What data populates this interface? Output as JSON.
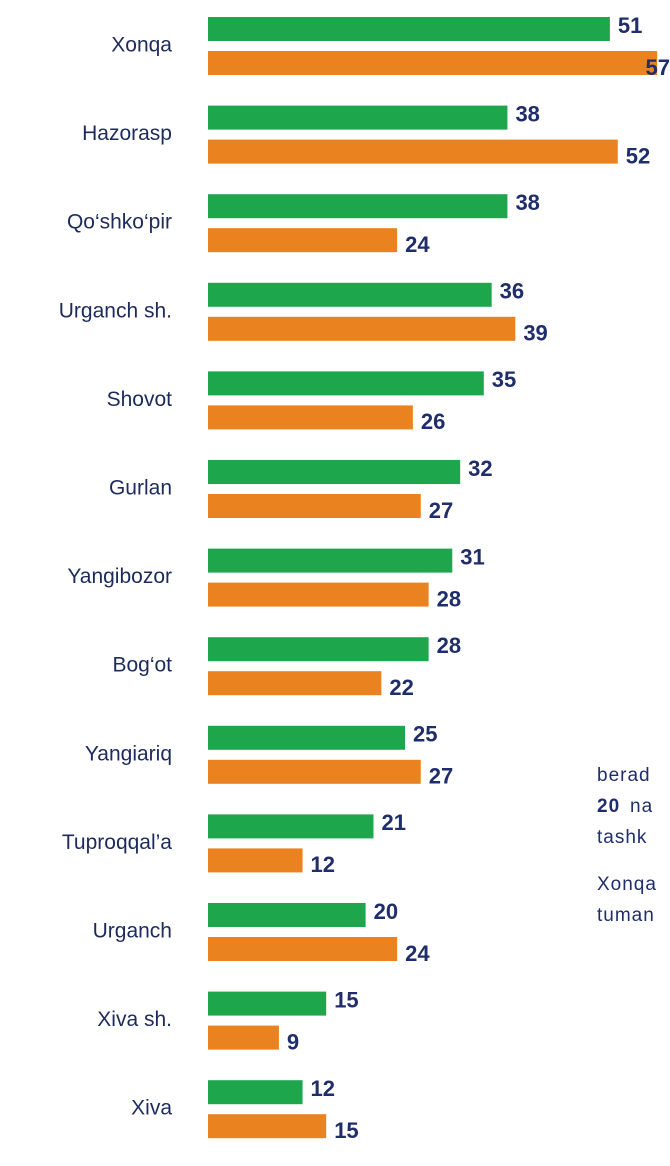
{
  "chart_data": {
    "type": "bar",
    "categories": [
      "Xonqa",
      "Hazorasp",
      "Qo‘shko‘pir",
      "Urganch sh.",
      "Shovot",
      "Gurlan",
      "Yangibozor",
      "Bog‘ot",
      "Yangiariq",
      "Tuproqqal’a",
      "Urganch",
      "Xiva sh.",
      "Xiva"
    ],
    "series": [
      {
        "color": "#1ea64c",
        "values": [
          51,
          38,
          38,
          36,
          35,
          32,
          31,
          28,
          25,
          21,
          20,
          15,
          12
        ]
      },
      {
        "color": "#e9821f",
        "values": [
          57,
          52,
          24,
          39,
          26,
          27,
          28,
          22,
          27,
          12,
          24,
          9,
          15
        ]
      }
    ],
    "annotations": [
      "berad",
      "20",
      "na",
      "tashk",
      "Xonqa",
      "tuman"
    ]
  }
}
